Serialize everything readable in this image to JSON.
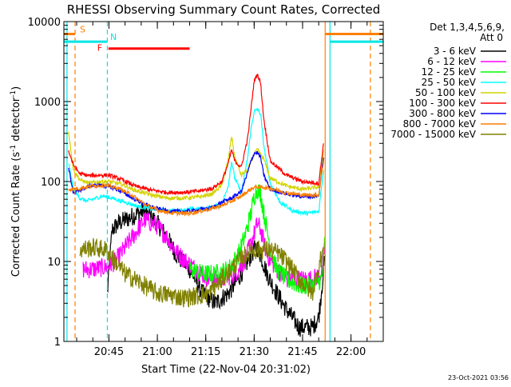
{
  "chart_data": {
    "type": "line",
    "title": "RHESSI Observing Summary Count Rates, Corrected",
    "xlabel": "Start Time (22-Nov-04 20:31:02)",
    "ylabel": "Corrected Count Rate (s^-1 detector^-1)",
    "ylabel_main": "Corrected Count Rate (s",
    "ylabel_sup1": "-1",
    "ylabel_mid": " detector",
    "ylabel_sup2": "-1",
    "ylabel_end": ")",
    "yscale": "log",
    "ylim": [
      1,
      10000
    ],
    "xlim": [
      "20:31:02",
      "22:10:00"
    ],
    "y_ticks": [
      "1",
      "10",
      "100",
      "1000",
      "10000"
    ],
    "x_ticks": [
      "20:45",
      "21:00",
      "21:15",
      "21:30",
      "21:45",
      "22:00"
    ],
    "legend_header": "Det 1,3,4,5,6,9,",
    "legend_header2": "Att 0",
    "legend_position": "top-right",
    "timestamp": "23-Oct-2021 03:56",
    "markers": [
      {
        "label": "S",
        "color": "#ff7f00",
        "from": "20:31:02",
        "to": "20:34:30",
        "value": 7000
      },
      {
        "label": "N",
        "color": "#00e5e5",
        "from": "20:31:02",
        "to": "20:44:30",
        "value": 5600
      },
      {
        "label": "F",
        "color": "#ff0000",
        "from": "20:44:50",
        "to": "21:10:00",
        "value": 4600
      }
    ],
    "marker_lines": [
      {
        "time": "20:34:30",
        "color": "#ff7f00",
        "style": "dashed"
      },
      {
        "time": "20:44:30",
        "color": "#00e5e5",
        "style": "dashed"
      },
      {
        "time": "20:32:00",
        "color": "#00e5e5",
        "style": "solid"
      },
      {
        "time": "21:52:00",
        "color": "#ff7f00",
        "style": "solid"
      },
      {
        "time": "21:53:30",
        "color": "#00e5e5",
        "style": "solid"
      },
      {
        "time": "22:06:00",
        "color": "#ff7f00",
        "style": "dashed"
      }
    ],
    "right_markers": [
      {
        "color": "#ff7f00",
        "from": "21:52:00",
        "to": "22:10:00",
        "value": 7000
      },
      {
        "color": "#00e5e5",
        "from": "21:53:30",
        "to": "22:10:00",
        "value": 5600
      }
    ],
    "series": [
      {
        "name": "3 - 6 keV",
        "color": "#000000",
        "x": [
          "20:44:30",
          "20:46",
          "20:48",
          "20:50",
          "20:53",
          "20:56",
          "21:00",
          "21:03",
          "21:06",
          "21:10",
          "21:14",
          "21:18",
          "21:22",
          "21:25",
          "21:28",
          "21:30",
          "21:31",
          "21:32",
          "21:34",
          "21:37",
          "21:40",
          "21:44",
          "21:48",
          "21:50",
          "21:52"
        ],
        "values": [
          4,
          25,
          30,
          33,
          38,
          44,
          30,
          20,
          12,
          8,
          4,
          3,
          4,
          6,
          10,
          14,
          15,
          12,
          7,
          4,
          2.5,
          1.5,
          1.5,
          2,
          12
        ]
      },
      {
        "name": "6 - 12 keV",
        "color": "#ff00ff",
        "x": [
          "20:37",
          "20:40",
          "20:44",
          "20:47",
          "20:50",
          "20:53",
          "20:56",
          "21:00",
          "21:03",
          "21:06",
          "21:09",
          "21:12",
          "21:16",
          "21:20",
          "21:24",
          "21:27",
          "21:30",
          "21:31",
          "21:32",
          "21:34",
          "21:37",
          "21:40",
          "21:44",
          "21:48",
          "21:51",
          "21:52"
        ],
        "values": [
          8,
          8,
          8.5,
          10,
          15,
          22,
          33,
          28,
          20,
          13,
          10,
          8,
          6,
          6,
          7,
          10,
          22,
          30,
          25,
          12,
          8,
          6,
          6,
          6,
          7,
          18
        ]
      },
      {
        "name": "12 - 25 keV",
        "color": "#00ff00",
        "x": [
          "21:10",
          "21:14",
          "21:18",
          "21:22",
          "21:25",
          "21:27",
          "21:29",
          "21:30",
          "21:31",
          "21:32",
          "21:33",
          "21:35",
          "21:37",
          "21:40",
          "21:44",
          "21:48",
          "21:51",
          "21:52"
        ],
        "values": [
          8,
          7,
          7,
          8,
          12,
          20,
          40,
          65,
          80,
          70,
          40,
          15,
          8,
          6,
          5,
          5,
          6,
          20
        ]
      },
      {
        "name": "25 - 50 keV",
        "color": "#00ffff",
        "x": [
          "20:32:30",
          "20:34",
          "20:36",
          "20:38",
          "20:40",
          "20:43",
          "20:46",
          "20:50",
          "20:54",
          "21:00",
          "21:05",
          "21:10",
          "21:15",
          "21:20",
          "21:22",
          "21:23",
          "21:24",
          "21:26",
          "21:28",
          "21:29",
          "21:30",
          "21:31",
          "21:32",
          "21:33",
          "21:35",
          "21:38",
          "21:42",
          "21:46",
          "21:50",
          "21:51:30"
        ],
        "values": [
          170,
          80,
          62,
          57,
          60,
          66,
          62,
          55,
          49,
          44,
          43,
          45,
          46,
          52,
          90,
          180,
          110,
          72,
          200,
          450,
          750,
          800,
          700,
          280,
          95,
          55,
          43,
          40,
          42,
          140
        ]
      },
      {
        "name": "50 - 100 keV",
        "color": "#d4d400",
        "x": [
          "20:32:30",
          "20:34",
          "20:36",
          "20:39",
          "20:42",
          "20:45",
          "20:49",
          "20:53",
          "20:58",
          "21:03",
          "21:08",
          "21:13",
          "21:17",
          "21:20",
          "21:22",
          "21:23",
          "21:24",
          "21:26",
          "21:28",
          "21:30",
          "21:31",
          "21:33",
          "21:35",
          "21:40",
          "21:45",
          "21:50",
          "21:51:30"
        ],
        "values": [
          420,
          140,
          105,
          95,
          100,
          100,
          92,
          78,
          68,
          62,
          62,
          64,
          70,
          90,
          190,
          370,
          200,
          120,
          140,
          220,
          250,
          190,
          110,
          88,
          80,
          85,
          250
        ]
      },
      {
        "name": "100 - 300 keV",
        "color": "#ff0000",
        "x": [
          "20:32:30",
          "20:34",
          "20:36",
          "20:39",
          "20:42",
          "20:45",
          "20:49",
          "20:53",
          "20:58",
          "21:03",
          "21:08",
          "21:13",
          "21:17",
          "21:20",
          "21:22",
          "21:23",
          "21:24",
          "21:26",
          "21:28",
          "21:29",
          "21:30",
          "21:31",
          "21:32",
          "21:33",
          "21:35",
          "21:40",
          "21:45",
          "21:50",
          "21:51:30"
        ],
        "values": [
          240,
          160,
          125,
          118,
          120,
          120,
          105,
          88,
          78,
          73,
          73,
          76,
          82,
          100,
          170,
          250,
          180,
          150,
          350,
          800,
          1800,
          2200,
          1700,
          600,
          180,
          120,
          100,
          95,
          300
        ]
      },
      {
        "name": "300 - 800 keV",
        "color": "#0000ff",
        "x": [
          "20:32:30",
          "20:34",
          "20:36",
          "20:39",
          "20:42",
          "20:45",
          "20:49",
          "20:53",
          "20:58",
          "21:03",
          "21:08",
          "21:13",
          "21:17",
          "21:20",
          "21:23",
          "21:26",
          "21:28",
          "21:29",
          "21:30",
          "21:31",
          "21:32",
          "21:33",
          "21:35",
          "21:40",
          "21:45",
          "21:50",
          "21:51:30"
        ],
        "values": [
          150,
          70,
          78,
          88,
          90,
          87,
          75,
          60,
          48,
          43,
          42,
          44,
          47,
          55,
          62,
          75,
          130,
          180,
          225,
          230,
          200,
          120,
          80,
          70,
          65,
          65,
          200
        ]
      },
      {
        "name": "800 - 7000 keV",
        "color": "#ff7f00",
        "x": [
          "20:32:30",
          "20:36",
          "20:40",
          "20:44",
          "20:48",
          "20:52",
          "20:56",
          "21:00",
          "21:05",
          "21:10",
          "21:15",
          "21:20",
          "21:25",
          "21:28",
          "21:30",
          "21:33",
          "21:36",
          "21:40",
          "21:45",
          "21:50",
          "21:51:30"
        ],
        "values": [
          80,
          82,
          88,
          90,
          82,
          68,
          52,
          44,
          40,
          40,
          44,
          50,
          62,
          75,
          85,
          85,
          80,
          72,
          68,
          68,
          180
        ]
      },
      {
        "name": "7000 - 15000 keV",
        "color": "#808000",
        "x": [
          "20:36",
          "20:40",
          "20:44",
          "20:47",
          "20:50",
          "20:53",
          "20:56",
          "21:00",
          "21:04",
          "21:08",
          "21:12",
          "21:16",
          "21:20",
          "21:24",
          "21:28",
          "21:31",
          "21:34",
          "21:37",
          "21:40",
          "21:44",
          "21:48",
          "21:51:30"
        ],
        "values": [
          14,
          15,
          14,
          10,
          7,
          6,
          5,
          4,
          3.8,
          3.5,
          3.7,
          4,
          6,
          9,
          13,
          14,
          14,
          13,
          10,
          6,
          4,
          15
        ]
      }
    ]
  }
}
